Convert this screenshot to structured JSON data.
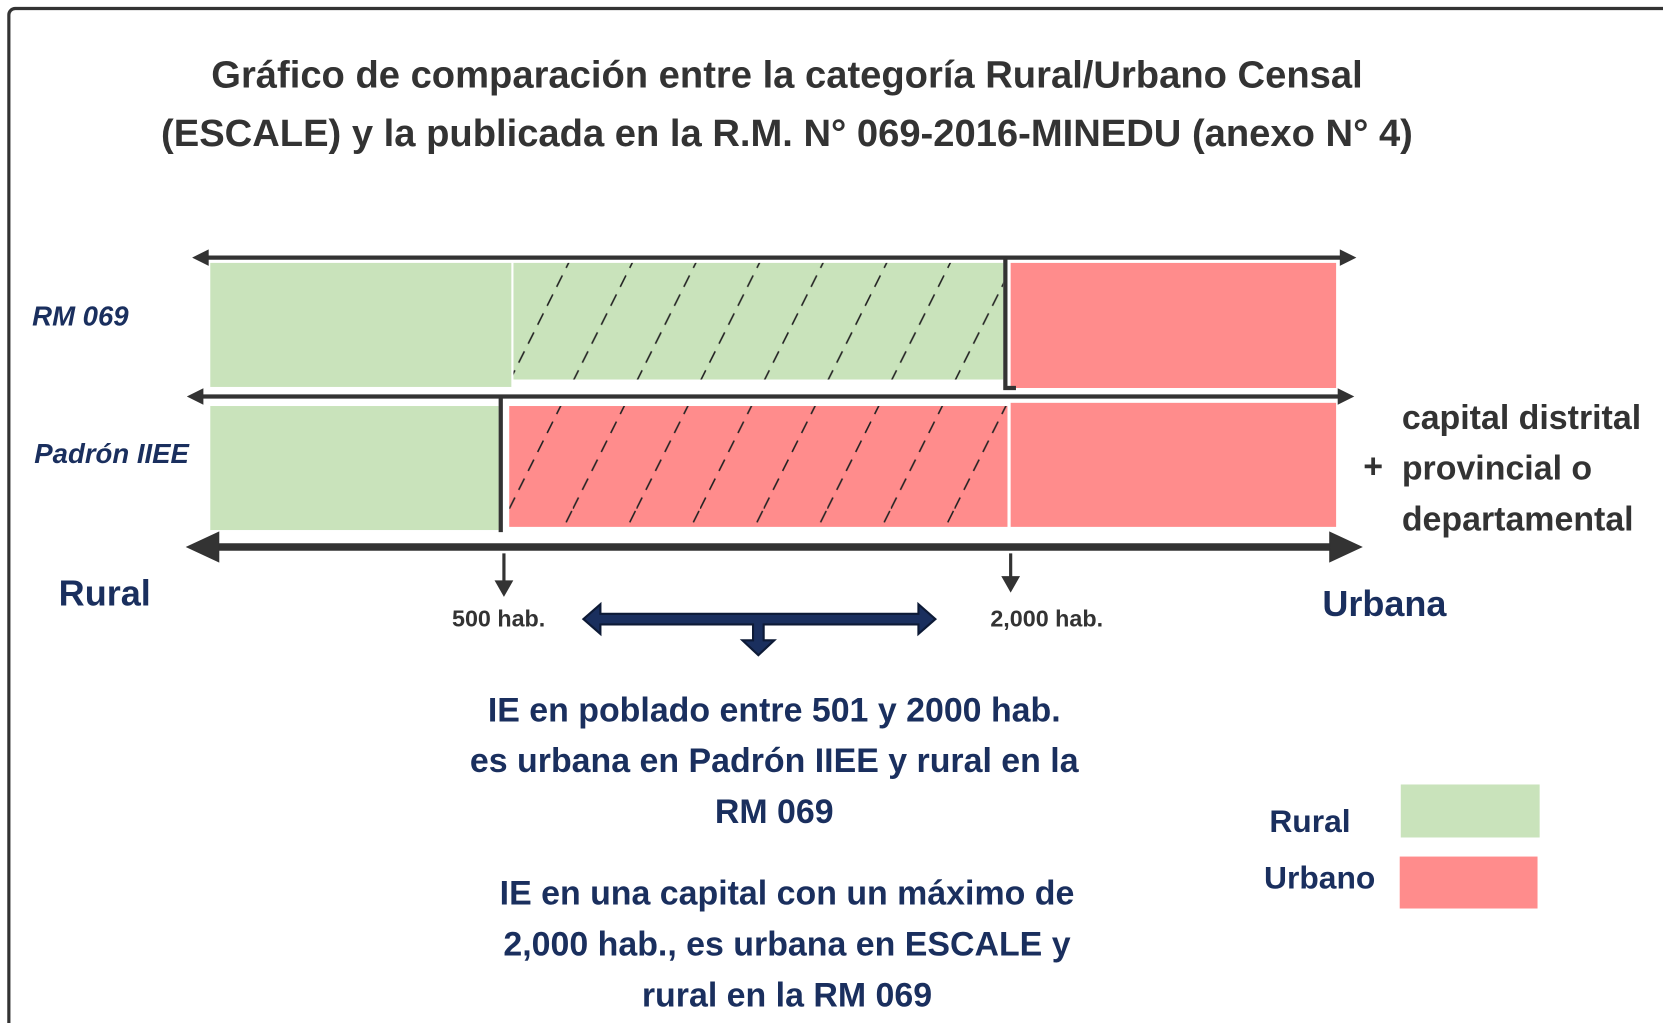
{
  "title": [
    "Gráfico de comparación entre la categoría Rural/Urbano Censal",
    "(ESCALE) y la publicada en la R.M. N° 069-2016-MINEDU (anexo N° 4)"
  ],
  "rows": [
    {
      "label": "RM 069"
    },
    {
      "label": "Padrón IIEE"
    }
  ],
  "axis": {
    "left": "Rural",
    "right": "Urbana",
    "thresholds": [
      "500 hab.",
      "2,000 hab."
    ]
  },
  "extra": {
    "symbol": "+",
    "lines": [
      "capital distrital",
      "provincial o",
      "departamental"
    ]
  },
  "notes": [
    [
      "IE en poblado entre 501 y 2000 hab.",
      "es urbana en Padrón IIEE y rural en la",
      "RM  069"
    ],
    [
      "IE en una capital con un máximo de",
      "2,000 hab., es urbana en ESCALE y",
      "rural en la RM 069"
    ]
  ],
  "legend": [
    {
      "label": "Rural",
      "color": "#c9e3bb"
    },
    {
      "label": "Urbano",
      "color": "#ff8c8c"
    }
  ]
}
